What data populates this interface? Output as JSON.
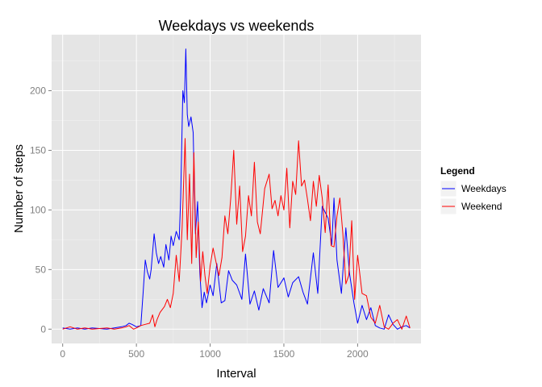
{
  "chart_data": {
    "type": "line",
    "title": "Weekdays vs weekends",
    "xlabel": "Interval",
    "ylabel": "Number of steps",
    "xlim": [
      -75,
      2430
    ],
    "ylim": [
      -12,
      247
    ],
    "xticks": [
      0,
      500,
      1000,
      1500,
      2000
    ],
    "xtick_labels": [
      "0",
      "500",
      "1000",
      "1500",
      "2000"
    ],
    "yticks": [
      0,
      50,
      100,
      150,
      200
    ],
    "ytick_labels": [
      "0",
      "50",
      "100",
      "150",
      "200"
    ],
    "grid": true,
    "legend": {
      "title": "Legend",
      "position": "right"
    },
    "series": [
      {
        "name": "Weekdays",
        "color": "#0000ff",
        "x": [
          0,
          50,
          100,
          150,
          200,
          300,
          350,
          400,
          430,
          450,
          470,
          500,
          530,
          545,
          560,
          575,
          590,
          600,
          620,
          635,
          650,
          665,
          685,
          700,
          720,
          735,
          750,
          770,
          790,
          800,
          815,
          825,
          835,
          845,
          855,
          870,
          885,
          900,
          915,
          930,
          945,
          960,
          975,
          1000,
          1020,
          1045,
          1075,
          1100,
          1125,
          1150,
          1180,
          1215,
          1240,
          1270,
          1300,
          1330,
          1360,
          1400,
          1430,
          1460,
          1500,
          1530,
          1560,
          1600,
          1630,
          1660,
          1700,
          1730,
          1760,
          1800,
          1825,
          1840,
          1860,
          1890,
          1920,
          1945,
          1975,
          2000,
          2030,
          2060,
          2090,
          2120,
          2150,
          2180,
          2210,
          2240,
          2270,
          2300,
          2330,
          2355
        ],
        "y": [
          1,
          0,
          1,
          0,
          1,
          0,
          1,
          2,
          3,
          5,
          4,
          2,
          3,
          30,
          58,
          48,
          42,
          50,
          80,
          64,
          55,
          61,
          52,
          71,
          58,
          78,
          70,
          82,
          75,
          110,
          200,
          190,
          235,
          180,
          170,
          178,
          165,
          80,
          107,
          48,
          18,
          31,
          22,
          37,
          28,
          55,
          22,
          24,
          49,
          41,
          37,
          25,
          63,
          21,
          32,
          16,
          34,
          22,
          66,
          35,
          43,
          27,
          39,
          44,
          31,
          21,
          64,
          30,
          103,
          93,
          71,
          110,
          58,
          30,
          85,
          47,
          22,
          5,
          20,
          8,
          18,
          3,
          1,
          0,
          12,
          4,
          0,
          2,
          3,
          1
        ]
      },
      {
        "name": "Weekend",
        "color": "#ff0000",
        "x": [
          0,
          50,
          100,
          150,
          200,
          300,
          350,
          400,
          430,
          450,
          480,
          500,
          530,
          560,
          590,
          610,
          625,
          640,
          660,
          690,
          710,
          730,
          750,
          770,
          790,
          810,
          830,
          845,
          860,
          875,
          890,
          905,
          920,
          935,
          950,
          965,
          980,
          1000,
          1020,
          1040,
          1060,
          1080,
          1100,
          1120,
          1140,
          1160,
          1180,
          1200,
          1220,
          1240,
          1260,
          1280,
          1300,
          1320,
          1340,
          1370,
          1400,
          1420,
          1440,
          1460,
          1480,
          1500,
          1520,
          1540,
          1560,
          1580,
          1600,
          1620,
          1640,
          1660,
          1680,
          1700,
          1720,
          1740,
          1760,
          1780,
          1800,
          1820,
          1840,
          1860,
          1880,
          1900,
          1920,
          1940,
          1960,
          1980,
          2000,
          2030,
          2060,
          2090,
          2120,
          2150,
          2180,
          2210,
          2240,
          2270,
          2300,
          2330,
          2355
        ],
        "y": [
          0,
          2,
          0,
          1,
          0,
          1,
          0,
          1,
          2,
          3,
          0,
          1,
          3,
          4,
          5,
          12,
          2,
          8,
          14,
          19,
          25,
          18,
          30,
          62,
          40,
          85,
          160,
          75,
          130,
          55,
          148,
          60,
          90,
          40,
          65,
          45,
          30,
          53,
          68,
          56,
          45,
          60,
          95,
          80,
          110,
          150,
          88,
          120,
          65,
          78,
          112,
          95,
          140,
          90,
          80,
          118,
          130,
          101,
          108,
          95,
          112,
          100,
          135,
          85,
          124,
          113,
          158,
          120,
          125,
          109,
          91,
          124,
          103,
          129,
          110,
          81,
          121,
          70,
          69,
          95,
          110,
          80,
          38,
          45,
          91,
          25,
          62,
          30,
          28,
          10,
          5,
          20,
          2,
          0,
          5,
          8,
          0,
          11,
          1
        ]
      }
    ]
  }
}
